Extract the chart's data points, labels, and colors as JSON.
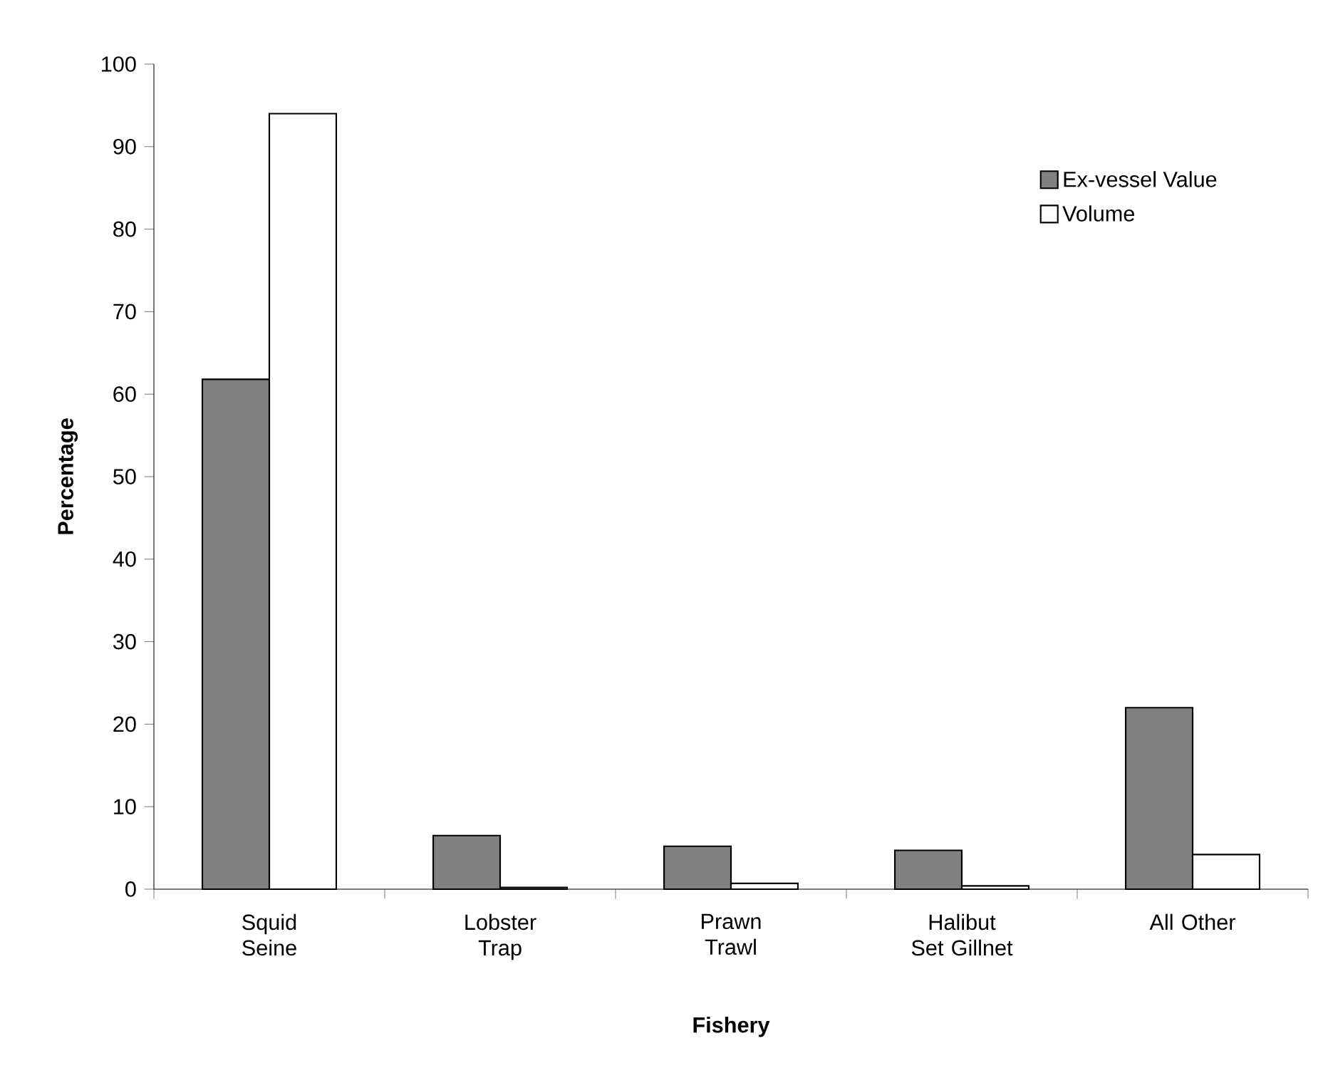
{
  "chart_data": {
    "type": "bar",
    "xlabel": "Fishery",
    "ylabel": "Percentage",
    "categories": [
      "Squid Seine",
      "Lobster Trap",
      "Prawn Trawl",
      "Halibut Set Gillnet",
      "All Other"
    ],
    "series": [
      {
        "name": "Ex-vessel Value",
        "color": "#808080",
        "values": [
          61.8,
          6.5,
          5.2,
          4.7,
          22
        ]
      },
      {
        "name": "Volume",
        "color": "#ffffff",
        "values": [
          94,
          0.2,
          0.7,
          0.4,
          4.2
        ]
      }
    ],
    "ylim": [
      0,
      100
    ],
    "yticks": [
      0,
      10,
      20,
      30,
      40,
      50,
      60,
      70,
      80,
      90,
      100
    ],
    "legend": "top right",
    "grid": false
  }
}
